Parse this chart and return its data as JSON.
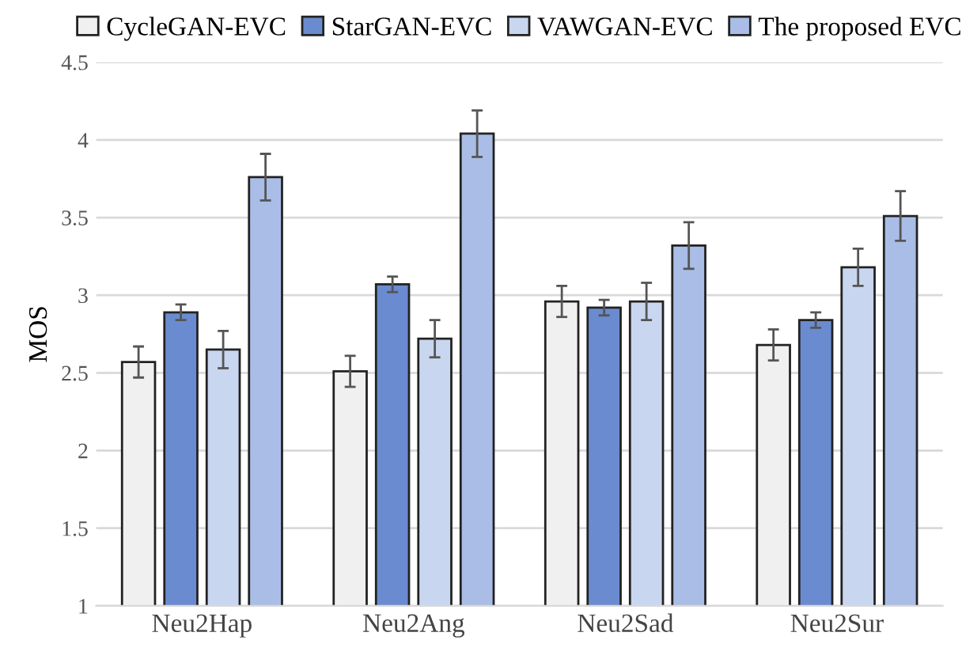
{
  "chart_data": {
    "type": "bar",
    "ylabel": "MOS",
    "categories": [
      "Neu2Hap",
      "Neu2Ang",
      "Neu2Sad",
      "Neu2Sur"
    ],
    "series": [
      {
        "name": "CycleGAN-EVC",
        "color": "#f0f0f0",
        "values": [
          2.57,
          2.51,
          2.96,
          2.68
        ],
        "errors": [
          0.1,
          0.1,
          0.1,
          0.1
        ]
      },
      {
        "name": "StarGAN-EVC",
        "color": "#6a8bcf",
        "values": [
          2.89,
          3.07,
          2.92,
          2.84
        ],
        "errors": [
          0.05,
          0.05,
          0.05,
          0.05
        ]
      },
      {
        "name": "VAWGAN-EVC",
        "color": "#c9d6ef",
        "values": [
          2.65,
          2.72,
          2.96,
          3.18
        ],
        "errors": [
          0.12,
          0.12,
          0.12,
          0.12
        ]
      },
      {
        "name": "The proposed EVC",
        "color": "#a9bde6",
        "values": [
          3.76,
          4.04,
          3.32,
          3.51
        ],
        "errors": [
          0.15,
          0.15,
          0.15,
          0.16
        ]
      }
    ],
    "ylim": [
      1,
      4.5
    ],
    "yticks": [
      1,
      1.5,
      2,
      2.5,
      3,
      3.5,
      4,
      4.5
    ],
    "grid": "y",
    "legend": "top"
  }
}
